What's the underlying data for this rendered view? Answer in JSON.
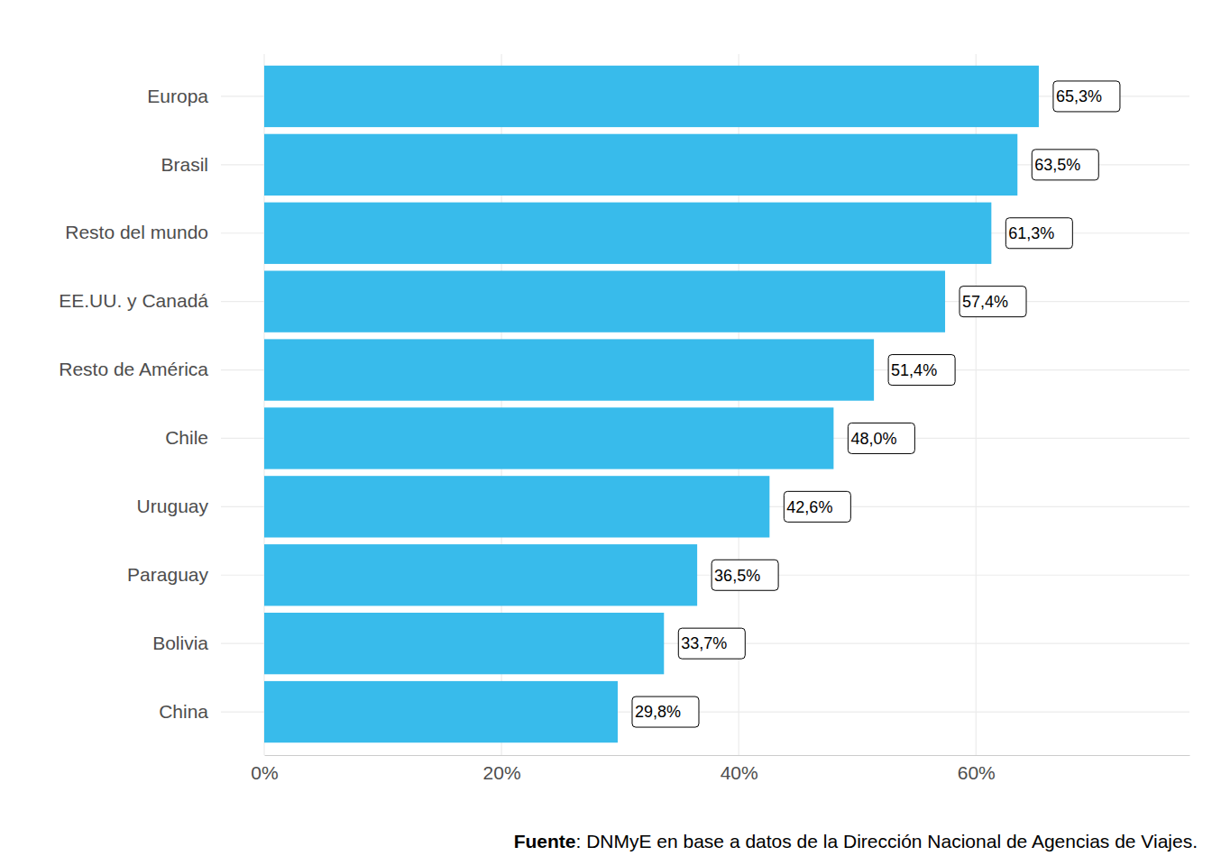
{
  "chart_data": {
    "type": "bar",
    "orientation": "horizontal",
    "categories": [
      "Europa",
      "Brasil",
      "Resto del mundo",
      "EE.UU. y Canadá",
      "Resto de América",
      "Chile",
      "Uruguay",
      "Paraguay",
      "Bolivia",
      "China"
    ],
    "values": [
      65.3,
      63.5,
      61.3,
      57.4,
      51.4,
      48.0,
      42.6,
      36.5,
      33.7,
      29.8
    ],
    "value_labels": [
      "65,3%",
      "63,5%",
      "61,3%",
      "57,4%",
      "51,4%",
      "48,0%",
      "42,6%",
      "36,5%",
      "33,7%",
      "29,8%"
    ],
    "data_labels": true,
    "color": "#38bbeb",
    "xlim": [
      0,
      78
    ],
    "xticks": [
      {
        "value": 0,
        "label": "0%"
      },
      {
        "value": 20,
        "label": "20%"
      },
      {
        "value": 40,
        "label": "40%"
      },
      {
        "value": 60,
        "label": "60%"
      }
    ],
    "grid": true,
    "caption": "Fuente: DNMyE en base a datos de la Dirección Nacional de Agencias de Viajes."
  }
}
